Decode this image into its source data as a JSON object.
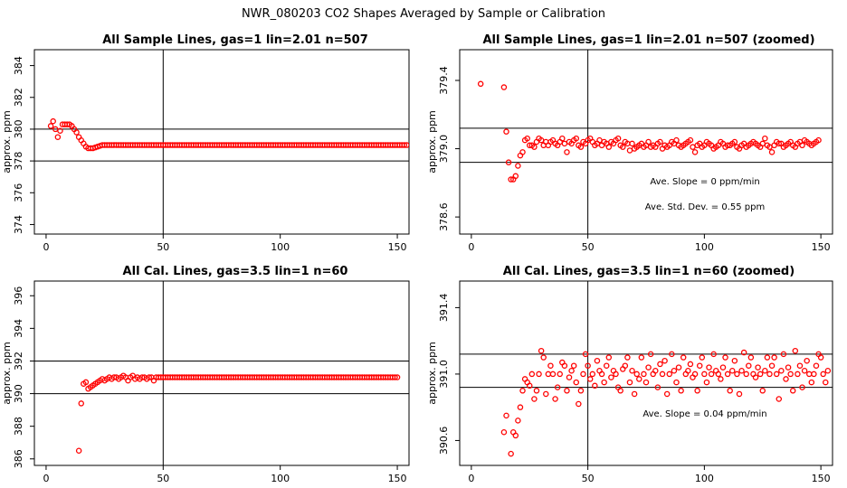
{
  "page": {
    "title": "NWR_080203  CO2 Shapes Averaged by Sample or Calibration"
  },
  "style": {
    "point_color": "#ff0000",
    "line_color": "#000000"
  },
  "chart_data": [
    {
      "type": "scatter",
      "title": "All Sample Lines, gas=1 lin=2.01 n=507",
      "xlabel": "",
      "ylabel": "approx. ppm",
      "xlim": [
        -5,
        155
      ],
      "ylim": [
        373.4,
        385.0
      ],
      "xticks": [
        0,
        50,
        100,
        150
      ],
      "yticks": [
        374,
        376,
        378,
        380,
        382,
        384
      ],
      "hlines": [
        378.0,
        380.0
      ],
      "vline": 50,
      "annotations": [],
      "x_start": 2,
      "x_step": 1,
      "y": [
        380.2,
        380.5,
        380.0,
        379.5,
        379.9,
        380.3,
        380.3,
        380.3,
        380.3,
        380.2,
        380.0,
        379.8,
        379.5,
        379.3,
        379.1,
        378.9,
        378.8,
        378.8,
        378.8,
        378.85,
        378.9,
        378.95,
        379.0,
        379.0,
        379.0,
        379.0,
        379.0,
        379.0,
        379.0,
        379.0,
        379.0,
        379.0,
        379.0,
        379.0,
        379.0,
        379.0,
        379.0,
        379.0,
        379.0,
        379.0,
        379.0,
        379.0,
        379.0,
        379.0,
        379.0,
        379.0,
        379.0,
        379.0,
        379.0,
        379.0,
        379.0,
        379.0,
        379.0,
        379.0,
        379.0,
        379.0,
        379.0,
        379.0,
        379.0,
        379.0,
        379.0,
        379.0,
        379.0,
        379.0,
        379.0,
        379.0,
        379.0,
        379.0,
        379.0,
        379.0,
        379.0,
        379.0,
        379.0,
        379.0,
        379.0,
        379.0,
        379.0,
        379.0,
        379.0,
        379.0,
        379.0,
        379.0,
        379.0,
        379.0,
        379.0,
        379.0,
        379.0,
        379.0,
        379.0,
        379.0,
        379.0,
        379.0,
        379.0,
        379.0,
        379.0,
        379.0,
        379.0,
        379.0,
        379.0,
        379.0,
        379.0,
        379.0,
        379.0,
        379.0,
        379.0,
        379.0,
        379.0,
        379.0,
        379.0,
        379.0,
        379.0,
        379.0,
        379.0,
        379.0,
        379.0,
        379.0,
        379.0,
        379.0,
        379.0,
        379.0,
        379.0,
        379.0,
        379.0,
        379.0,
        379.0,
        379.0,
        379.0,
        379.0,
        379.0,
        379.0,
        379.0,
        379.0,
        379.0,
        379.0,
        379.0,
        379.0,
        379.0,
        379.0,
        379.0,
        379.0,
        379.0,
        379.0,
        379.0,
        379.0,
        379.0,
        379.0,
        379.0,
        379.0,
        379.0,
        379.0,
        379.0,
        379.0,
        379.0
      ]
    },
    {
      "type": "scatter",
      "title": "All Sample Lines, gas=1 lin=2.01 n=507 (zoomed)",
      "xlabel": "",
      "ylabel": "approx. ppm",
      "xlim": [
        -5,
        155
      ],
      "ylim": [
        378.5,
        379.58
      ],
      "xticks": [
        0,
        50,
        100,
        150
      ],
      "yticks": [
        378.6,
        379.0,
        379.4
      ],
      "yticklabels": [
        "378.6",
        "379.0",
        "379.4"
      ],
      "hlines": [
        378.92,
        379.12
      ],
      "vline": 50,
      "annotations": [
        "Ave. Slope =  0  ppm/min",
        "Ave. Std. Dev. =  0.55  ppm"
      ],
      "x_start": 4,
      "x_step": 1,
      "y": [
        379.38,
        null,
        null,
        null,
        null,
        null,
        null,
        null,
        null,
        null,
        379.36,
        379.1,
        378.92,
        378.82,
        378.82,
        378.84,
        378.9,
        378.96,
        378.98,
        379.05,
        379.06,
        379.02,
        379.02,
        379.01,
        379.04,
        379.06,
        379.05,
        379.02,
        379.04,
        379.02,
        379.04,
        379.05,
        379.03,
        379.02,
        379.04,
        379.06,
        379.03,
        378.98,
        379.04,
        379.03,
        379.05,
        379.06,
        379.02,
        379.01,
        379.04,
        379.03,
        379.05,
        379.06,
        379.04,
        379.02,
        379.03,
        379.05,
        379.02,
        379.04,
        379.03,
        379.01,
        379.04,
        379.03,
        379.05,
        379.06,
        379.02,
        379.01,
        379.04,
        379.03,
        378.99,
        379.03,
        379.0,
        379.01,
        379.02,
        379.03,
        379.01,
        379.02,
        379.04,
        379.01,
        379.02,
        379.01,
        379.03,
        379.04,
        379.0,
        379.02,
        379.01,
        379.02,
        379.04,
        379.03,
        379.05,
        379.02,
        379.01,
        379.02,
        379.03,
        379.04,
        379.05,
        379.01,
        378.98,
        379.02,
        379.03,
        379.01,
        379.02,
        379.04,
        379.03,
        379.02,
        379.0,
        379.01,
        379.02,
        379.04,
        379.03,
        379.01,
        379.02,
        379.02,
        379.03,
        379.04,
        379.01,
        379.0,
        379.02,
        379.03,
        379.01,
        379.02,
        379.03,
        379.04,
        379.03,
        379.02,
        379.01,
        379.03,
        379.06,
        379.02,
        379.01,
        378.98,
        379.02,
        379.04,
        379.03,
        379.03,
        379.01,
        379.02,
        379.03,
        379.04,
        379.02,
        379.01,
        379.03,
        379.04,
        379.02,
        379.05,
        379.04,
        379.03,
        379.02,
        379.03,
        379.04,
        379.05
      ]
    },
    {
      "type": "scatter",
      "title": "All Cal. Lines, gas=3.5 lin=1 n=60",
      "xlabel": "",
      "ylabel": "approx. ppm",
      "xlim": [
        -5,
        155
      ],
      "ylim": [
        385.6,
        396.9
      ],
      "xticks": [
        0,
        50,
        100,
        150
      ],
      "yticks": [
        386,
        388,
        390,
        392,
        394,
        396
      ],
      "hlines": [
        390.0,
        392.0
      ],
      "vline": 50,
      "annotations": [],
      "x_start": 14,
      "x_step": 1,
      "y": [
        386.5,
        389.4,
        390.6,
        390.7,
        390.3,
        390.4,
        390.5,
        390.6,
        390.7,
        390.8,
        390.9,
        390.8,
        390.9,
        391.0,
        390.9,
        391.0,
        391.0,
        390.9,
        391.0,
        391.1,
        391.0,
        390.8,
        391.0,
        391.1,
        390.9,
        391.0,
        390.9,
        391.0,
        391.0,
        390.9,
        391.0,
        391.0,
        390.8,
        391.0,
        391.0,
        391.0,
        391.0,
        391.0,
        391.0,
        391.0,
        391.0,
        391.0,
        391.0,
        391.0,
        391.0,
        391.0,
        391.0,
        391.0,
        391.0,
        391.0,
        391.0,
        391.0,
        391.0,
        391.0,
        391.0,
        391.0,
        391.0,
        391.0,
        391.0,
        391.0,
        391.0,
        391.0,
        391.0,
        391.0,
        391.0,
        391.0,
        391.0,
        391.0,
        391.0,
        391.0,
        391.0,
        391.0,
        391.0,
        391.0,
        391.0,
        391.0,
        391.0,
        391.0,
        391.0,
        391.0,
        391.0,
        391.0,
        391.0,
        391.0,
        391.0,
        391.0,
        391.0,
        391.0,
        391.0,
        391.0,
        391.0,
        391.0,
        391.0,
        391.0,
        391.0,
        391.0,
        391.0,
        391.0,
        391.0,
        391.0,
        391.0,
        391.0,
        391.0,
        391.0,
        391.0,
        391.0,
        391.0,
        391.0,
        391.0,
        391.0,
        391.0,
        391.0,
        391.0,
        391.0,
        391.0,
        391.0,
        391.0,
        391.0,
        391.0,
        391.0,
        391.0,
        391.0,
        391.0,
        391.0,
        391.0,
        391.0,
        391.0,
        391.0,
        391.0,
        391.0,
        391.0,
        391.0,
        391.0,
        391.0,
        391.0,
        391.0,
        391.0
      ]
    },
    {
      "type": "scatter",
      "title": "All Cal. Lines, gas=3.5 lin=1 n=60 (zoomed)",
      "xlabel": "",
      "ylabel": "approx. ppm",
      "xlim": [
        -5,
        155
      ],
      "ylim": [
        390.45,
        391.56
      ],
      "xticks": [
        0,
        50,
        100,
        150
      ],
      "yticks": [
        390.6,
        391.0,
        391.4
      ],
      "yticklabels": [
        "390.6",
        "391.0",
        "391.4"
      ],
      "hlines": [
        390.92,
        391.12
      ],
      "vline": 50,
      "annotations": [
        "Ave. Slope =  0.04  ppm/min"
      ],
      "x_start": 14,
      "x_step": 1,
      "y": [
        390.65,
        390.75,
        null,
        390.52,
        390.65,
        390.63,
        390.72,
        390.8,
        390.9,
        390.97,
        390.95,
        390.93,
        391.0,
        390.85,
        390.9,
        391.0,
        391.14,
        391.1,
        390.88,
        391.0,
        391.05,
        391.0,
        390.85,
        390.92,
        391.0,
        391.07,
        391.05,
        390.9,
        390.98,
        391.02,
        391.05,
        390.95,
        390.82,
        390.9,
        391.0,
        391.12,
        391.05,
        390.97,
        391.0,
        390.93,
        391.08,
        391.02,
        391.0,
        390.95,
        391.05,
        391.1,
        390.98,
        391.02,
        391.0,
        390.92,
        390.9,
        391.03,
        391.05,
        391.1,
        390.95,
        391.02,
        390.88,
        391.0,
        390.97,
        391.1,
        391.0,
        390.95,
        391.04,
        391.12,
        391.0,
        391.02,
        390.92,
        391.06,
        391.0,
        391.08,
        390.88,
        391.0,
        391.12,
        391.02,
        390.95,
        391.04,
        390.9,
        391.1,
        391.0,
        391.02,
        391.06,
        390.98,
        391.0,
        390.9,
        391.05,
        391.1,
        391.0,
        390.95,
        391.04,
        391.0,
        391.12,
        391.02,
        391.0,
        390.97,
        391.04,
        391.1,
        391.0,
        390.9,
        391.02,
        391.08,
        391.0,
        390.88,
        391.02,
        391.13,
        391.0,
        391.05,
        391.1,
        391.0,
        390.98,
        391.04,
        391.0,
        390.9,
        391.02,
        391.1,
        391.0,
        391.05,
        391.1,
        391.0,
        390.85,
        391.02,
        391.12,
        390.97,
        391.04,
        391.0,
        390.9,
        391.14,
        391.0,
        391.05,
        390.92,
        391.02,
        391.08,
        391.0,
        390.95,
        391.0,
        391.05,
        391.12,
        391.1,
        391.0,
        390.95,
        391.02
      ]
    }
  ]
}
